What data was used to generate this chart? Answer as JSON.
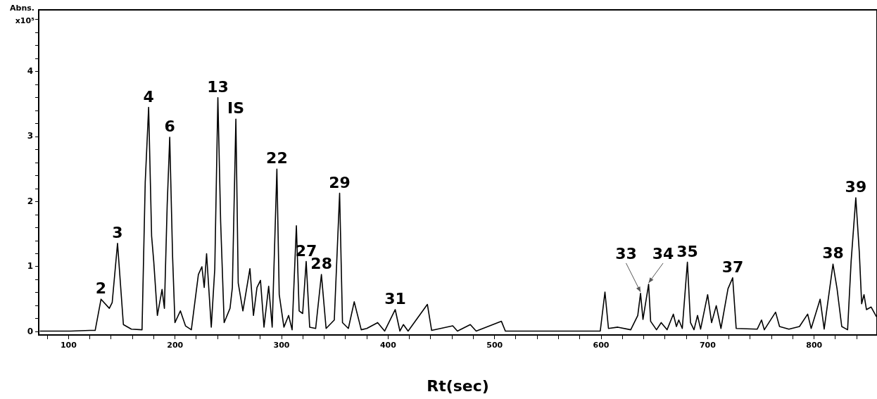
{
  "chart_data": {
    "type": "line",
    "xlabel": "Rt(sec)",
    "ylabel": "Abns. x10⁵",
    "color": "#000000",
    "marker": "none",
    "line_style": "solid",
    "xlim": [
      72,
      859
    ],
    "ylim": [
      -0.05,
      4.95
    ],
    "xticks": [
      {
        "value": 80,
        "label": null
      },
      100,
      {
        "value": 120,
        "label": null
      },
      {
        "value": 140,
        "label": null
      },
      {
        "value": 160,
        "label": null
      },
      {
        "value": 180,
        "label": null
      },
      200,
      {
        "value": 220,
        "label": null
      },
      {
        "value": 240,
        "label": null
      },
      {
        "value": 260,
        "label": null
      },
      {
        "value": 280,
        "label": null
      },
      300,
      {
        "value": 320,
        "label": null
      },
      {
        "value": 340,
        "label": null
      },
      {
        "value": 360,
        "label": null
      },
      {
        "value": 380,
        "label": null
      },
      400,
      {
        "value": 420,
        "label": null
      },
      {
        "value": 440,
        "label": null
      },
      {
        "value": 460,
        "label": null
      },
      {
        "value": 480,
        "label": null
      },
      500,
      {
        "value": 520,
        "label": null
      },
      {
        "value": 540,
        "label": null
      },
      {
        "value": 560,
        "label": null
      },
      {
        "value": 580,
        "label": null
      },
      600,
      {
        "value": 620,
        "label": null
      },
      {
        "value": 640,
        "label": null
      },
      {
        "value": 660,
        "label": null
      },
      {
        "value": 680,
        "label": null
      },
      700,
      {
        "value": 720,
        "label": null
      },
      {
        "value": 740,
        "label": null
      },
      {
        "value": 760,
        "label": null
      },
      {
        "value": 780,
        "label": null
      },
      800,
      {
        "value": 820,
        "label": null
      },
      {
        "value": 840,
        "label": null
      }
    ],
    "yticks": [
      0,
      {
        "value": 0.2,
        "label": null
      },
      {
        "value": 0.4,
        "label": null
      },
      {
        "value": 0.6,
        "label": null
      },
      {
        "value": 0.8,
        "label": null
      },
      1,
      {
        "value": 1.2,
        "label": null
      },
      {
        "value": 1.4,
        "label": null
      },
      {
        "value": 1.6,
        "label": null
      },
      {
        "value": 1.8,
        "label": null
      },
      2,
      {
        "value": 2.2,
        "label": null
      },
      {
        "value": 2.4,
        "label": null
      },
      {
        "value": 2.6,
        "label": null
      },
      {
        "value": 2.8,
        "label": null
      },
      3,
      {
        "value": 3.2,
        "label": null
      },
      {
        "value": 3.4,
        "label": null
      },
      {
        "value": 3.6,
        "label": null
      },
      {
        "value": 3.8,
        "label": null
      },
      4,
      {
        "value": 4.2,
        "label": null
      },
      {
        "value": 4.4,
        "label": null
      },
      {
        "value": 4.6,
        "label": null
      },
      {
        "value": 4.8,
        "label": null
      }
    ],
    "x": [
      73,
      102,
      120,
      125,
      130.5,
      138.3,
      141,
      146,
      151.5,
      159,
      169,
      172,
      175.2,
      178,
      180,
      183.4,
      187.8,
      190,
      192.6,
      195,
      197.7,
      199.9,
      205,
      209.8,
      215.3,
      221.9,
      225.2,
      227.4,
      229.6,
      234,
      237.3,
      240.2,
      242.8,
      246.1,
      251.6,
      253.8,
      257.1,
      259.3,
      263.7,
      270.3,
      273.6,
      276.9,
      280.2,
      283.5,
      287.9,
      291.2,
      295.6,
      297.8,
      302.2,
      306.6,
      309.9,
      313.9,
      316.5,
      319.8,
      323.1,
      326.4,
      332,
      337.4,
      341.8,
      349.5,
      354.5,
      357.2,
      362.7,
      368.2,
      374.8,
      380,
      390.2,
      396.8,
      406.7,
      411.1,
      414.4,
      418.8,
      436.9,
      440.9,
      460.7,
      465.1,
      477.2,
      482.7,
      506.4,
      510.1,
      599.2,
      603.6,
      606.9,
      615.7,
      627.8,
      634.4,
      637,
      639.3,
      644.6,
      646.5,
      652,
      656.4,
      661.9,
      667.8,
      670.7,
      672.9,
      676.2,
      681,
      683.9,
      687.2,
      690.5,
      693.4,
      700,
      703.7,
      708.1,
      712.5,
      719.1,
      723.5,
      726.8,
      746.6,
      750.6,
      753.2,
      763.8,
      767.5,
      776.3,
      786.2,
      793.9,
      797.2,
      805.6,
      809.4,
      817.7,
      821.5,
      825.9,
      831.4,
      834.7,
      839.1,
      842.4,
      844.6,
      846.8,
      849.1,
      853.5,
      858.5
    ],
    "values": [
      0.01,
      0.01,
      0.02,
      0.02,
      0.5,
      0.36,
      0.45,
      1.36,
      0.11,
      0.04,
      0.03,
      2.3,
      3.45,
      1.47,
      1.08,
      0.25,
      0.65,
      0.36,
      1.94,
      2.99,
      1.15,
      0.14,
      0.32,
      0.09,
      0.03,
      0.88,
      1.0,
      0.68,
      1.2,
      0.07,
      0.97,
      3.6,
      1.69,
      0.14,
      0.36,
      0.68,
      3.27,
      0.75,
      0.32,
      0.97,
      0.25,
      0.68,
      0.79,
      0.07,
      0.7,
      0.07,
      2.5,
      0.57,
      0.07,
      0.25,
      0.03,
      1.63,
      0.32,
      0.28,
      1.08,
      0.07,
      0.05,
      0.88,
      0.05,
      0.18,
      2.13,
      0.14,
      0.05,
      0.46,
      0.03,
      0.05,
      0.14,
      0.01,
      0.34,
      0.01,
      0.11,
      0.01,
      0.42,
      0.02,
      0.09,
      0.01,
      0.11,
      0.01,
      0.16,
      0.01,
      0.01,
      0.61,
      0.05,
      0.07,
      0.03,
      0.25,
      0.59,
      0.19,
      0.73,
      0.16,
      0.03,
      0.14,
      0.03,
      0.27,
      0.08,
      0.18,
      0.05,
      1.07,
      0.14,
      0.03,
      0.25,
      0.04,
      0.57,
      0.14,
      0.4,
      0.05,
      0.66,
      0.83,
      0.05,
      0.04,
      0.18,
      0.03,
      0.3,
      0.08,
      0.04,
      0.08,
      0.27,
      0.05,
      0.5,
      0.04,
      1.04,
      0.66,
      0.08,
      0.03,
      1.08,
      2.06,
      1.22,
      0.43,
      0.57,
      0.34,
      0.38,
      0.23
    ],
    "annotations": [
      {
        "text": "2",
        "x": 130.5,
        "y": 0.5
      },
      {
        "text": "3",
        "x": 146,
        "y": 1.36
      },
      {
        "text": "4",
        "x": 175.2,
        "y": 3.45
      },
      {
        "text": "6",
        "x": 195,
        "y": 2.99
      },
      {
        "text": "13",
        "x": 240.2,
        "y": 3.6
      },
      {
        "text": "IS",
        "x": 257.1,
        "y": 3.27
      },
      {
        "text": "22",
        "x": 295.6,
        "y": 2.5
      },
      {
        "text": "27",
        "x": 323.1,
        "y": 1.08
      },
      {
        "text": "28",
        "x": 337.4,
        "y": 0.88
      },
      {
        "text": "29",
        "x": 354.5,
        "y": 2.13
      },
      {
        "text": "31",
        "x": 406.7,
        "y": 0.34
      },
      {
        "text": "33",
        "x": 637,
        "y": 0.59
      },
      {
        "text": "34",
        "x": 644.6,
        "y": 0.73
      },
      {
        "text": "35",
        "x": 681,
        "y": 1.07
      },
      {
        "text": "37",
        "x": 723.5,
        "y": 0.83
      },
      {
        "text": "38",
        "x": 817.7,
        "y": 1.04
      },
      {
        "text": "39",
        "x": 839.1,
        "y": 2.06
      }
    ]
  }
}
